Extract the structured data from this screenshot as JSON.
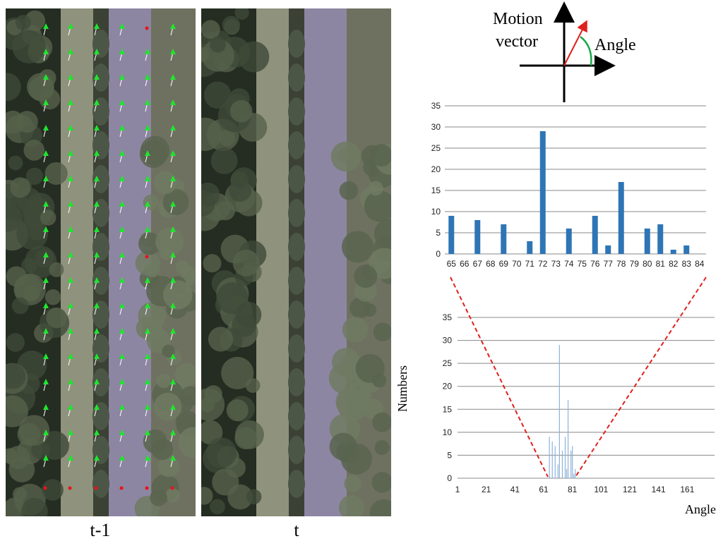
{
  "frames": {
    "left_label": "t-1",
    "right_label": "t"
  },
  "diagram": {
    "line1": "Motion",
    "line2": "vector",
    "angle_label": "Angle"
  },
  "colors": {
    "bar": "#2e75b6",
    "bar_light": "#8db3d9",
    "grid": "#888888",
    "zoom_line": "#e0201c",
    "arrow_red": "#e0201c",
    "arc_green": "#19a84a",
    "vec_green": "#1ee62d",
    "vec_white": "#ffffff",
    "dot_red": "#e8141a"
  },
  "chart_data": [
    {
      "type": "bar",
      "categories": [
        "65",
        "66",
        "67",
        "68",
        "69",
        "70",
        "71",
        "72",
        "73",
        "74",
        "75",
        "76",
        "77",
        "78",
        "79",
        "80",
        "81",
        "82",
        "83",
        "84"
      ],
      "values": [
        9,
        0,
        8,
        0,
        7,
        0,
        3,
        29,
        0,
        6,
        0,
        9,
        2,
        17,
        0,
        6,
        7,
        1,
        2,
        0
      ],
      "ylim": [
        0,
        35
      ],
      "yticks": [
        0,
        5,
        10,
        15,
        20,
        25,
        30,
        35
      ],
      "grid": true,
      "title": "",
      "xlabel": "",
      "ylabel": ""
    },
    {
      "type": "bar",
      "x_range": [
        1,
        180
      ],
      "xticks": [
        1,
        21,
        41,
        61,
        81,
        101,
        121,
        141,
        161
      ],
      "points": [
        {
          "x": 65,
          "y": 9
        },
        {
          "x": 67,
          "y": 8
        },
        {
          "x": 69,
          "y": 7
        },
        {
          "x": 71,
          "y": 3
        },
        {
          "x": 72,
          "y": 29
        },
        {
          "x": 74,
          "y": 6
        },
        {
          "x": 76,
          "y": 9
        },
        {
          "x": 77,
          "y": 2
        },
        {
          "x": 78,
          "y": 17
        },
        {
          "x": 80,
          "y": 6
        },
        {
          "x": 81,
          "y": 7
        },
        {
          "x": 82,
          "y": 1
        },
        {
          "x": 83,
          "y": 2
        }
      ],
      "ylim": [
        0,
        35
      ],
      "yticks": [
        0,
        5,
        10,
        15,
        20,
        25,
        30,
        35
      ],
      "grid": true,
      "xlabel": "Angle",
      "ylabel": "Numbers"
    }
  ]
}
